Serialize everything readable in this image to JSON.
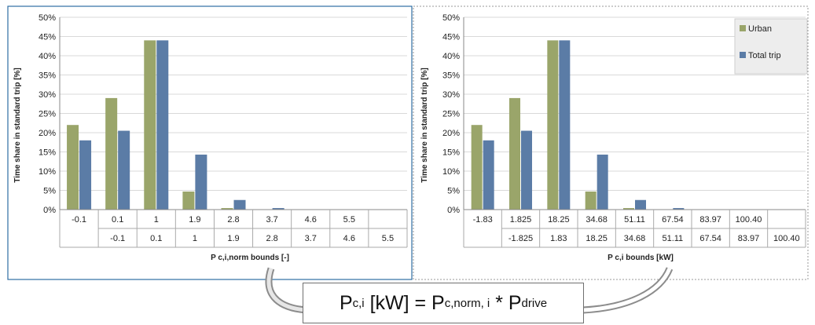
{
  "colors": {
    "urban": "#9aa56a",
    "total": "#5b7ca6",
    "grid": "#d9d9d9",
    "border_left": "#2e6da4",
    "border_right": "#999999"
  },
  "chart_data": [
    {
      "type": "bar",
      "ylabel": "Time share in standard trip [%]",
      "xlabel": "P c,i,norm bounds [-]",
      "ylim": [
        0,
        50
      ],
      "yticks": [
        "0%",
        "5%",
        "10%",
        "15%",
        "20%",
        "25%",
        "30%",
        "35%",
        "40%",
        "45%",
        "50%"
      ],
      "categories_upper": [
        "-0.1",
        "0.1",
        "1",
        "1.9",
        "2.8",
        "3.7",
        "4.6",
        "5.5",
        ""
      ],
      "categories_lower": [
        "",
        "-0.1",
        "0.1",
        "1",
        "1.9",
        "2.8",
        "3.7",
        "4.6",
        "5.5"
      ],
      "series": [
        {
          "name": "Urban",
          "values": [
            22,
            29,
            44,
            4.7,
            0.4,
            0.1,
            0.1,
            0.1,
            0
          ]
        },
        {
          "name": "Total trip",
          "values": [
            18,
            20.5,
            44,
            14.3,
            2.5,
            0.4,
            0.1,
            0.1,
            0.1
          ]
        }
      ],
      "legend": "none",
      "grid": true
    },
    {
      "type": "bar",
      "ylabel": "Time share in standard trip [%]",
      "xlabel": "P c,i bounds [kW]",
      "ylim": [
        0,
        50
      ],
      "yticks": [
        "0%",
        "5%",
        "10%",
        "15%",
        "20%",
        "25%",
        "30%",
        "35%",
        "40%",
        "45%",
        "50%"
      ],
      "categories_upper": [
        "-1.83",
        "1.825",
        "18.25",
        "34.68",
        "51.11",
        "67.54",
        "83.97",
        "100.40",
        ""
      ],
      "categories_lower": [
        "",
        "-1.825",
        "1.83",
        "18.25",
        "34.68",
        "51.11",
        "67.54",
        "83.97",
        "100.40"
      ],
      "series": [
        {
          "name": "Urban",
          "values": [
            22,
            29,
            44,
            4.7,
            0.4,
            0.1,
            0.1,
            0.1,
            0
          ]
        },
        {
          "name": "Total trip",
          "values": [
            18,
            20.5,
            44,
            14.3,
            2.5,
            0.4,
            0.1,
            0.1,
            0.1
          ]
        }
      ],
      "legend": "top-right",
      "grid": true
    }
  ],
  "formula": {
    "lhs_main": "P",
    "lhs_sub": "c,i",
    "middle": " [kW] = P",
    "mid_sub": "c,norm, i",
    "op": " * P",
    "rhs_sub": "drive"
  }
}
